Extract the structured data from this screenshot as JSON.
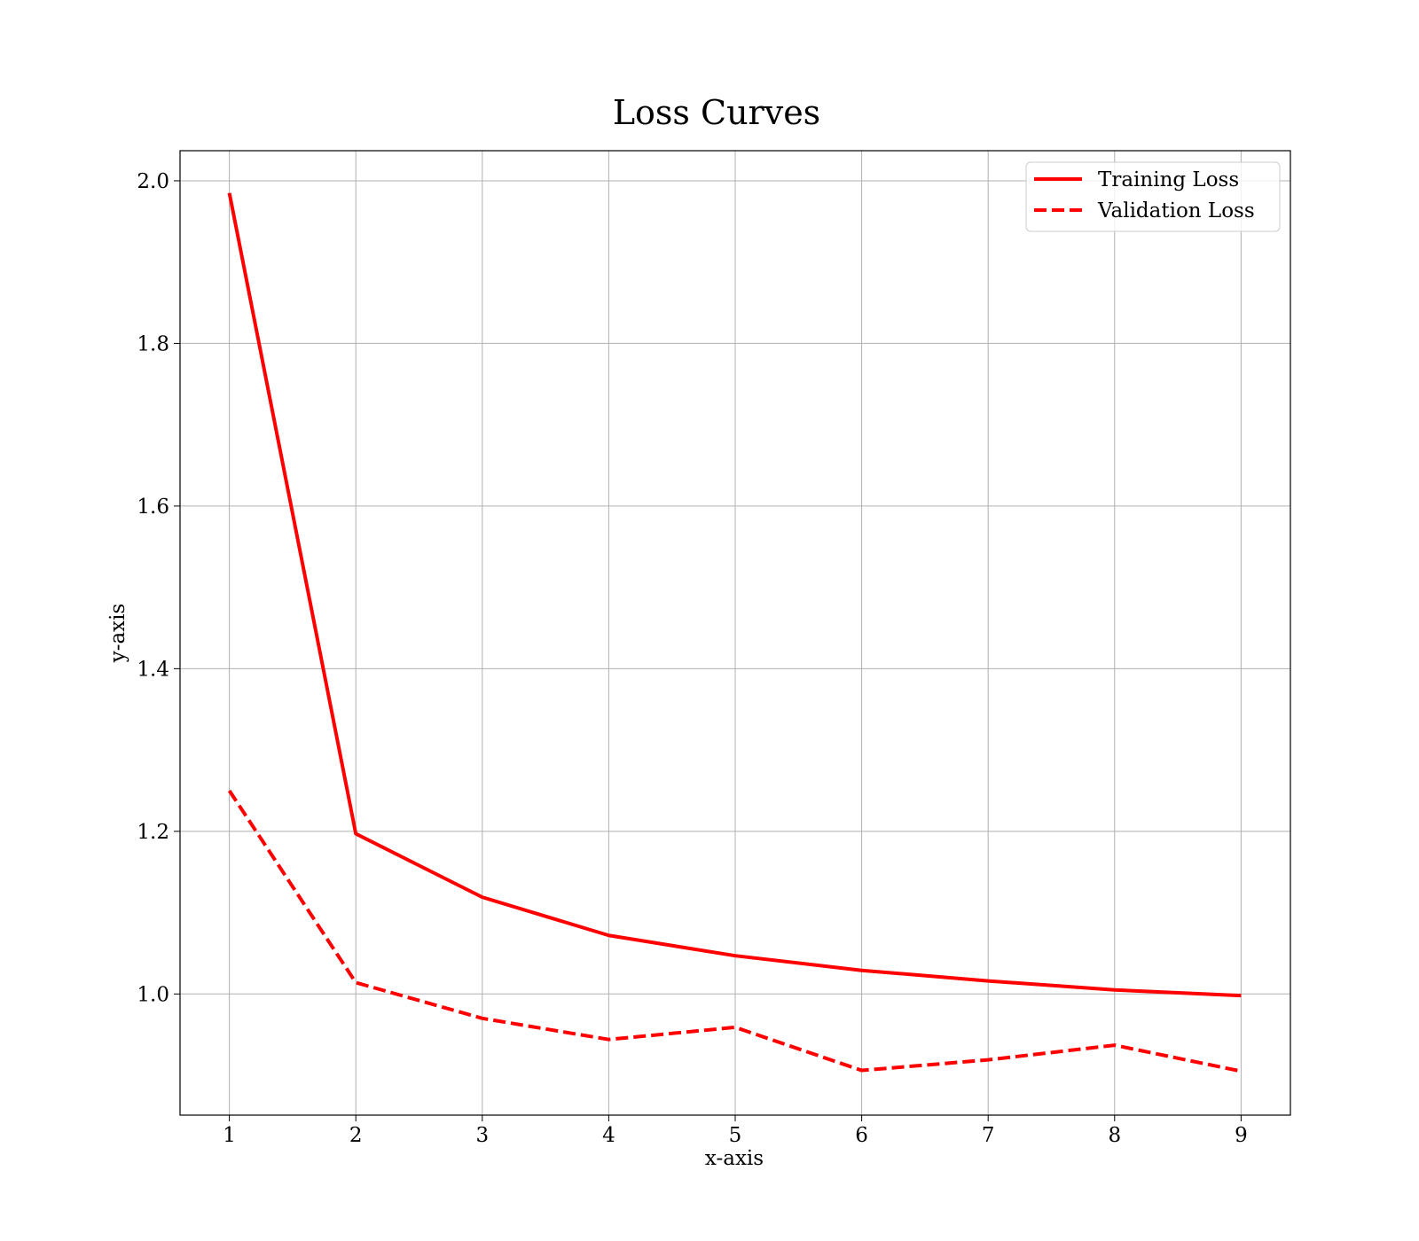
{
  "chart_data": {
    "type": "line",
    "title": "Loss Curves",
    "xlabel": "x-axis",
    "ylabel": "y-axis",
    "x": [
      1,
      2,
      3,
      4,
      5,
      6,
      7,
      8,
      9
    ],
    "xlim": [
      0.61,
      9.39
    ],
    "ylim": [
      0.851,
      2.037
    ],
    "xticks": [
      1,
      2,
      3,
      4,
      5,
      6,
      7,
      8,
      9
    ],
    "yticks": [
      "1.0",
      "1.2",
      "1.4",
      "1.6",
      "1.8",
      "2.0"
    ],
    "grid": true,
    "legend_position": "top-right",
    "series": [
      {
        "name": "Training Loss",
        "values": [
          1.985,
          1.197,
          1.119,
          1.072,
          1.047,
          1.029,
          1.016,
          1.005,
          0.998
        ],
        "color": "#ff0000",
        "style": "solid"
      },
      {
        "name": "Validation Loss",
        "values": [
          1.25,
          1.014,
          0.97,
          0.944,
          0.959,
          0.906,
          0.919,
          0.937,
          0.905
        ],
        "color": "#ff0000",
        "style": "dashed"
      }
    ]
  }
}
